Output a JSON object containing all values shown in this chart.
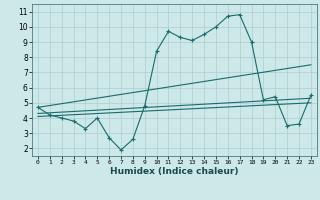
{
  "x": [
    0,
    1,
    2,
    3,
    4,
    5,
    6,
    7,
    8,
    9,
    10,
    11,
    12,
    13,
    14,
    15,
    16,
    17,
    18,
    19,
    20,
    21,
    22,
    23
  ],
  "line_main": [
    4.7,
    4.2,
    4.0,
    3.8,
    3.3,
    4.0,
    2.7,
    1.9,
    2.6,
    4.8,
    8.4,
    9.7,
    9.3,
    9.1,
    9.5,
    10.0,
    10.7,
    10.8,
    9.0,
    5.2,
    5.4,
    3.5,
    3.6,
    5.5
  ],
  "reg_lines": [
    [
      4.7,
      4.0,
      7.5
    ],
    [
      4.5,
      4.1,
      5.3
    ],
    [
      4.3,
      4.2,
      5.0
    ]
  ],
  "bg_color": "#cce8e8",
  "grid_color": "#b0cccc",
  "line_color": "#1a6b6b",
  "xlabel": "Humidex (Indice chaleur)",
  "xlim": [
    -0.5,
    23.5
  ],
  "ylim": [
    1.5,
    11.5
  ],
  "xticks": [
    0,
    1,
    2,
    3,
    4,
    5,
    6,
    7,
    8,
    9,
    10,
    11,
    12,
    13,
    14,
    15,
    16,
    17,
    18,
    19,
    20,
    21,
    22,
    23
  ],
  "yticks": [
    2,
    3,
    4,
    5,
    6,
    7,
    8,
    9,
    10,
    11
  ]
}
